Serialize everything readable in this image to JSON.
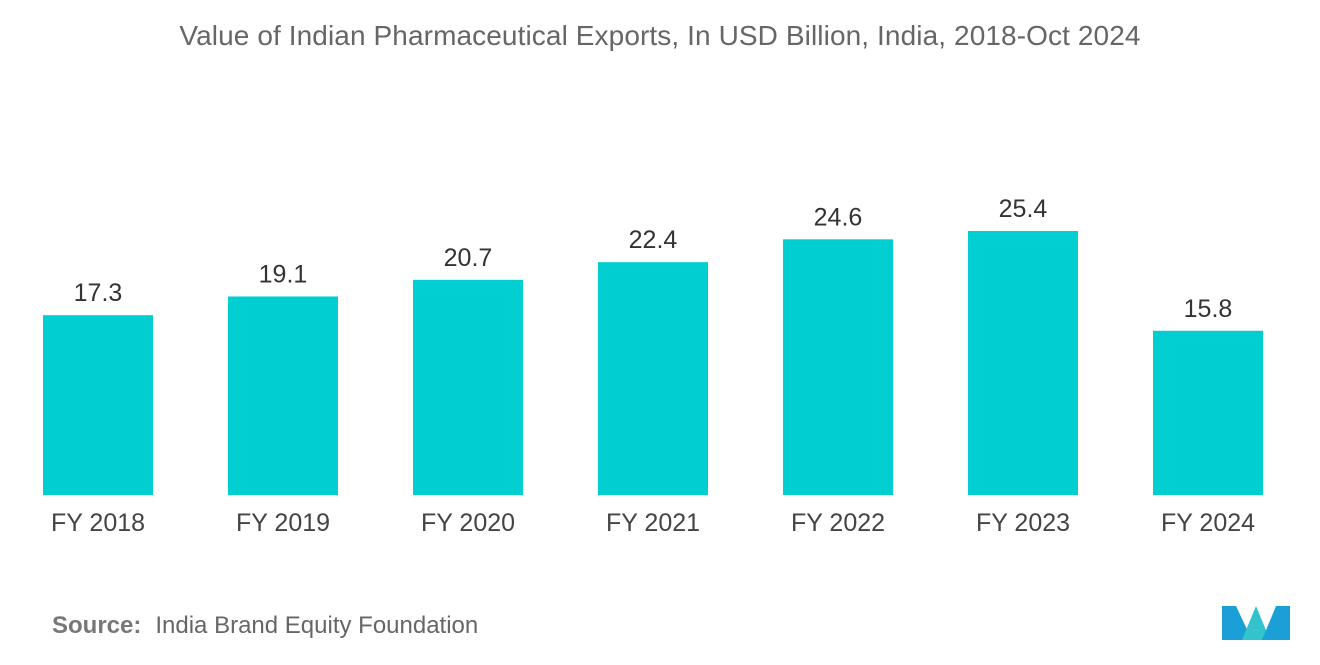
{
  "chart_data": {
    "type": "bar",
    "title": "Value of Indian Pharmaceutical Exports, In USD Billion, India, 2018-Oct 2024",
    "categories": [
      "FY 2018",
      "FY 2019",
      "FY 2020",
      "FY 2021",
      "FY 2022",
      "FY 2023",
      "FY 2024"
    ],
    "values": [
      17.3,
      19.1,
      20.7,
      22.4,
      24.6,
      25.4,
      15.8
    ],
    "data_labels": [
      "17.3",
      "19.1",
      "20.7",
      "22.4",
      "24.6",
      "25.4",
      "15.8"
    ],
    "xlabel": "",
    "ylabel": "",
    "ylim": [
      0,
      25.4
    ],
    "grid": false,
    "legend": "none",
    "bar_color": "#00ced1"
  },
  "source": {
    "label": "Source:",
    "text": "India Brand Equity Foundation"
  },
  "logo": {
    "icon": "mordor-intelligence-logo-icon",
    "colors": [
      "#1a9fd6",
      "#33c3cc"
    ]
  }
}
